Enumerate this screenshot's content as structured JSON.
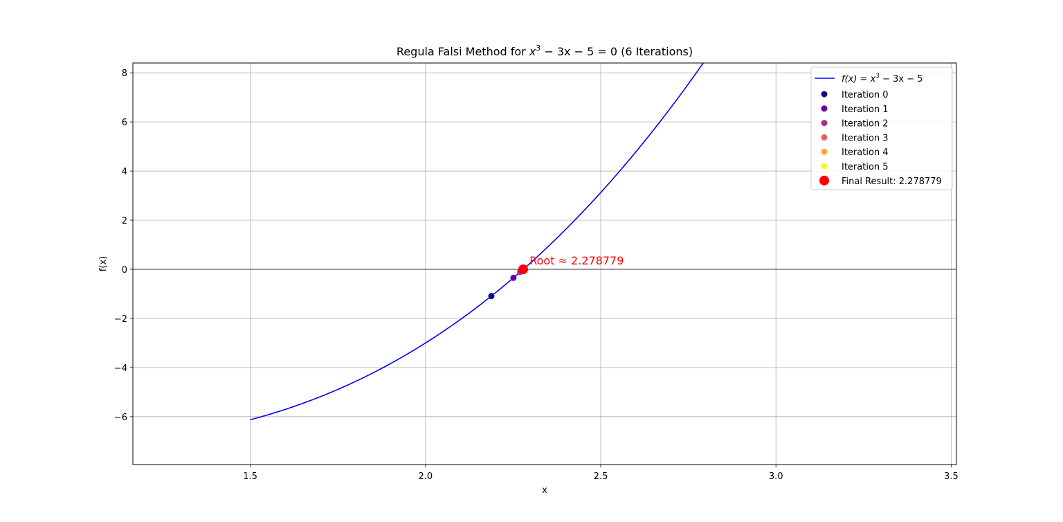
{
  "chart_data": {
    "type": "line",
    "title_parts": {
      "prefix": "Regula Falsi Method for ",
      "base": "x",
      "exponent": "3",
      "suffix": " − 3x − 5 = 0 (6 Iterations)"
    },
    "xlabel": "x",
    "ylabel": "f(x)",
    "xlim": [
      1.165,
      3.515
    ],
    "ylim": [
      -7.95,
      8.4
    ],
    "x_ticks": [
      "1.5",
      "2.0",
      "2.5",
      "3.0",
      "3.5"
    ],
    "x_tick_values": [
      1.5,
      2.0,
      2.5,
      3.0,
      3.5
    ],
    "y_ticks": [
      "−6",
      "−4",
      "−2",
      "0",
      "2",
      "4",
      "6",
      "8"
    ],
    "y_tick_values": [
      -6,
      -4,
      -2,
      0,
      2,
      4,
      6,
      8
    ],
    "grid": true,
    "curve": {
      "function": "x^3 - 3x - 5",
      "x_range": [
        1.5,
        3.5
      ],
      "color": "#0000ff"
    },
    "zero_line": {
      "y": 0,
      "color": "#000000"
    },
    "iterations": [
      {
        "name": "Iteration 0",
        "x": 2.188,
        "y": -1.09,
        "color": "#0d0887"
      },
      {
        "name": "Iteration 1",
        "x": 2.251,
        "y": -0.347,
        "color": "#6a00a8"
      },
      {
        "name": "Iteration 2",
        "x": 2.27,
        "y": -0.108,
        "color": "#b12a90"
      },
      {
        "name": "Iteration 3",
        "x": 2.276,
        "y": -0.033,
        "color": "#e16462"
      },
      {
        "name": "Iteration 4",
        "x": 2.278,
        "y": -0.01,
        "color": "#fca636"
      },
      {
        "name": "Iteration 5",
        "x": 2.2786,
        "y": -0.003,
        "color": "#f0f921"
      }
    ],
    "final": {
      "name": "Final Result: 2.278779",
      "x": 2.278779,
      "y": 0.0,
      "color": "#ff0000"
    },
    "annotation": {
      "text": "Root ≈ 2.278779",
      "x": 2.297,
      "y": 0.28,
      "color": "#ff0000"
    },
    "legend": {
      "placement": "top-right",
      "curve_label_parts": {
        "lhs": "f(x) = x",
        "exp": "3",
        "rhs": " − 3x − 5"
      }
    }
  }
}
